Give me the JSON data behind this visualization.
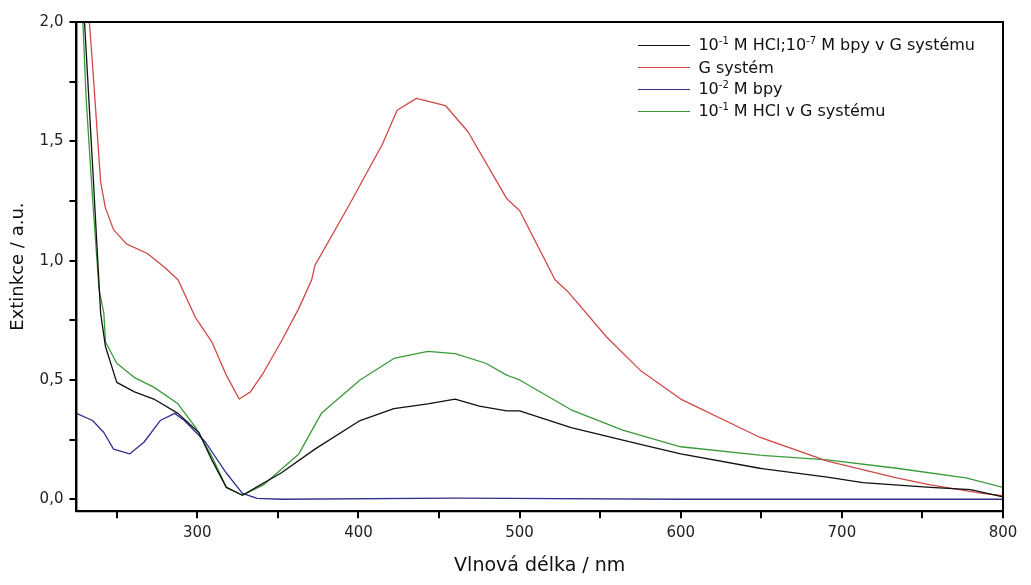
{
  "chart_data": {
    "type": "line",
    "xlabel": "Vlnová délka / nm",
    "ylabel": "Extinkce / a.u.",
    "xlim": [
      225,
      800
    ],
    "ylim": [
      -0.05,
      2.0
    ],
    "xticks": [
      {
        "value": 250,
        "label": null
      },
      300,
      {
        "value": 350,
        "label": null
      },
      400,
      {
        "value": 450,
        "label": null
      },
      500,
      {
        "value": 550,
        "label": null
      },
      600,
      {
        "value": 650,
        "label": null
      },
      700,
      {
        "value": 750,
        "label": null
      },
      800
    ],
    "yticks": [
      {
        "value": 0,
        "label": "0,0"
      },
      {
        "value": 0.25,
        "label": null
      },
      {
        "value": 0.5,
        "label": "0,5"
      },
      {
        "value": 0.75,
        "label": null
      },
      {
        "value": 1.0,
        "label": "1,0"
      },
      {
        "value": 1.25,
        "label": null
      },
      {
        "value": 1.5,
        "label": "1,5"
      },
      {
        "value": 1.75,
        "label": null
      },
      {
        "value": 2.0,
        "label": "2,0"
      }
    ],
    "grid": false,
    "legend": "top right",
    "marker": "none",
    "line_style": "solid",
    "series": [
      {
        "name": "10$^{-1}$ M HCl;10$^{-7}$ M bpy v G systému",
        "color": "#111111",
        "x": [
          230,
          235,
          240,
          243,
          250,
          261,
          273,
          288,
          301,
          309,
          318,
          328,
          352,
          373,
          401,
          422,
          443,
          460,
          475,
          492,
          500,
          532,
          575,
          600,
          649,
          691,
          713,
          755,
          780,
          800
        ],
        "values": [
          2.0,
          1.4,
          0.78,
          0.64,
          0.49,
          0.45,
          0.42,
          0.36,
          0.28,
          0.165,
          0.05,
          0.017,
          0.11,
          0.21,
          0.33,
          0.38,
          0.4,
          0.42,
          0.39,
          0.37,
          0.37,
          0.3,
          0.23,
          0.19,
          0.13,
          0.093,
          0.07,
          0.05,
          0.04,
          0.01
        ]
      },
      {
        "name": "G systém",
        "color": "#d04848",
        "x": [
          233,
          235,
          240,
          243,
          248,
          256,
          269,
          280,
          288,
          299,
          309,
          318,
          326,
          333,
          341,
          352,
          363,
          371,
          373,
          394,
          415,
          424,
          436,
          454,
          468,
          492,
          500,
          522,
          530,
          554,
          575,
          600,
          649,
          691,
          734,
          755,
          787,
          800
        ],
        "values": [
          2.0,
          1.82,
          1.33,
          1.22,
          1.13,
          1.07,
          1.03,
          0.97,
          0.92,
          0.76,
          0.66,
          0.52,
          0.42,
          0.45,
          0.53,
          0.66,
          0.8,
          0.92,
          0.98,
          1.23,
          1.49,
          1.63,
          1.68,
          1.65,
          1.54,
          1.26,
          1.21,
          0.92,
          0.87,
          0.68,
          0.54,
          0.42,
          0.26,
          0.16,
          0.09,
          0.06,
          0.025,
          0.015
        ]
      },
      {
        "name": "10$^{-2}$ M bpy",
        "color": "#30308f",
        "x": [
          225,
          235,
          242,
          248,
          258,
          267,
          277,
          286,
          292,
          305,
          318,
          328,
          337,
          352,
          460,
          600,
          800
        ],
        "values": [
          0.36,
          0.33,
          0.28,
          0.21,
          0.19,
          0.24,
          0.33,
          0.36,
          0.33,
          0.24,
          0.11,
          0.025,
          0.004,
          0.0,
          0.005,
          0.0,
          0.0
        ]
      },
      {
        "name": "10$^{-1}$ M HCl v G systému",
        "color": "#3a9a3a",
        "x": [
          229,
          231,
          235,
          239,
          242,
          243,
          250,
          261,
          273,
          288,
          299,
          309,
          318,
          328,
          341,
          363,
          377,
          401,
          422,
          443,
          460,
          479,
          492,
          500,
          532,
          564,
          600,
          649,
          691,
          734,
          777,
          800
        ],
        "values": [
          2.0,
          1.68,
          1.26,
          0.88,
          0.78,
          0.66,
          0.57,
          0.51,
          0.47,
          0.4,
          0.3,
          0.18,
          0.05,
          0.017,
          0.06,
          0.19,
          0.36,
          0.5,
          0.59,
          0.62,
          0.61,
          0.57,
          0.52,
          0.5,
          0.375,
          0.29,
          0.22,
          0.185,
          0.165,
          0.13,
          0.09,
          0.05
        ]
      }
    ]
  }
}
